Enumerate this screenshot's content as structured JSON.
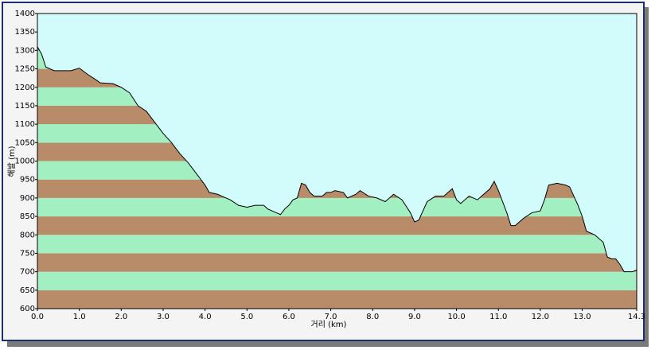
{
  "chart_data": {
    "type": "area",
    "xlabel": "거리 (km)",
    "ylabel": "해발 (m)",
    "x": [
      0.0,
      0.1,
      0.2,
      0.4,
      0.8,
      1.0,
      1.2,
      1.4,
      1.5,
      1.8,
      2.0,
      2.2,
      2.4,
      2.6,
      2.8,
      3.0,
      3.2,
      3.4,
      3.6,
      3.8,
      4.0,
      4.1,
      4.3,
      4.6,
      4.8,
      5.0,
      5.2,
      5.4,
      5.5,
      5.7,
      5.8,
      5.9,
      6.0,
      6.1,
      6.2,
      6.3,
      6.4,
      6.5,
      6.6,
      6.8,
      6.9,
      7.0,
      7.1,
      7.3,
      7.4,
      7.6,
      7.7,
      7.9,
      8.1,
      8.3,
      8.5,
      8.7,
      8.9,
      9.0,
      9.1,
      9.3,
      9.5,
      9.7,
      9.9,
      10.0,
      10.1,
      10.3,
      10.5,
      10.6,
      10.8,
      10.9,
      11.0,
      11.2,
      11.3,
      11.4,
      11.6,
      11.8,
      12.0,
      12.1,
      12.2,
      12.4,
      12.6,
      12.7,
      12.9,
      13.0,
      13.1,
      13.3,
      13.5,
      13.6,
      13.7,
      13.8,
      13.9,
      14.0,
      14.2,
      14.3
    ],
    "values": [
      1310,
      1290,
      1255,
      1245,
      1245,
      1252,
      1235,
      1220,
      1212,
      1210,
      1200,
      1185,
      1150,
      1135,
      1105,
      1075,
      1050,
      1020,
      995,
      965,
      935,
      915,
      910,
      895,
      880,
      875,
      880,
      880,
      870,
      860,
      855,
      870,
      880,
      895,
      900,
      940,
      935,
      915,
      905,
      905,
      915,
      915,
      920,
      915,
      900,
      910,
      920,
      905,
      900,
      890,
      910,
      895,
      860,
      835,
      840,
      890,
      905,
      905,
      925,
      895,
      885,
      905,
      895,
      905,
      925,
      945,
      920,
      860,
      825,
      825,
      845,
      860,
      865,
      895,
      935,
      940,
      935,
      930,
      880,
      850,
      810,
      800,
      780,
      740,
      735,
      735,
      720,
      700,
      700,
      705
    ],
    "xlim": [
      0,
      14.3
    ],
    "ylim": [
      600,
      1400
    ],
    "xticks": [
      {
        "value": 0,
        "label": "0.0"
      },
      {
        "value": 1,
        "label": "1.0"
      },
      {
        "value": 2,
        "label": "2.0"
      },
      {
        "value": 3,
        "label": "3.0"
      },
      {
        "value": 4,
        "label": "4.0"
      },
      {
        "value": 5,
        "label": "5.0"
      },
      {
        "value": 6,
        "label": "6.0"
      },
      {
        "value": 7,
        "label": "7.0"
      },
      {
        "value": 8,
        "label": "8.0"
      },
      {
        "value": 9,
        "label": "9.0"
      },
      {
        "value": 10,
        "label": "10.0"
      },
      {
        "value": 11,
        "label": "11.0"
      },
      {
        "value": 12,
        "label": "12.0"
      },
      {
        "value": 13,
        "label": "13.0"
      },
      14.3
    ],
    "yticks": [
      600,
      650,
      700,
      750,
      800,
      850,
      900,
      950,
      1000,
      1050,
      1100,
      1150,
      1200,
      1250,
      1300,
      1350,
      1400
    ],
    "background": "#d2fbfb",
    "band_colors": [
      "#b98c69",
      "#a2f0c2"
    ],
    "color": "#000000"
  }
}
